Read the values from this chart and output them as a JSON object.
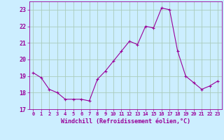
{
  "x": [
    0,
    1,
    2,
    3,
    4,
    5,
    6,
    7,
    8,
    9,
    10,
    11,
    12,
    13,
    14,
    15,
    16,
    17,
    18,
    19,
    20,
    21,
    22,
    23
  ],
  "y": [
    19.2,
    18.9,
    18.2,
    18.0,
    17.6,
    17.6,
    17.6,
    17.5,
    18.8,
    19.3,
    19.9,
    20.5,
    21.1,
    20.9,
    22.0,
    21.9,
    23.1,
    23.0,
    20.5,
    19.0,
    18.6,
    18.2,
    18.4,
    18.7
  ],
  "line_color": "#990099",
  "marker": "+",
  "bg_color": "#cceeff",
  "grid_color": "#aaccbb",
  "xlabel": "Windchill (Refroidissement éolien,°C)",
  "xlabel_color": "#990099",
  "tick_color": "#990099",
  "ylim": [
    17,
    23.5
  ],
  "yticks": [
    17,
    18,
    19,
    20,
    21,
    22,
    23
  ],
  "xtick_labels": [
    "0",
    "1",
    "2",
    "3",
    "4",
    "5",
    "6",
    "7",
    "8",
    "9",
    "10",
    "11",
    "12",
    "13",
    "14",
    "15",
    "16",
    "17",
    "18",
    "19",
    "20",
    "21",
    "22",
    "23"
  ],
  "fig_width": 3.2,
  "fig_height": 2.0,
  "dpi": 100
}
